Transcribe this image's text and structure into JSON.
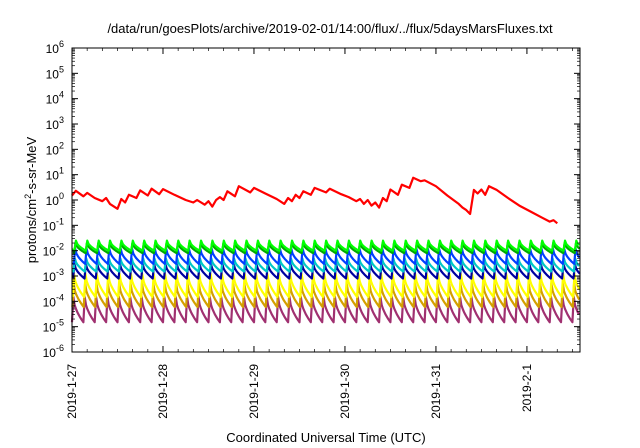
{
  "chart_data": {
    "type": "line",
    "title": "/data/run/goesPlots/archive/2019-02-01/14:00/flux/../flux/5daysMarsFluxes.txt",
    "xlabel": "Coordinated Universal Time (UTC)",
    "ylabel": "protons/cm²-s-sr-MeV",
    "y_scale": "log",
    "ylim": [
      1e-06,
      1000000.0
    ],
    "xlim_days": [
      "2019-01-27 00:00",
      "2019-02-01 14:00"
    ],
    "x_tick_labels": [
      "2019-1-27",
      "2019-1-28",
      "2019-1-29",
      "2019-1-30",
      "2019-1-31",
      "2019-2-1"
    ],
    "y_tick_labels": [
      {
        "base": "10",
        "exp": "-6"
      },
      {
        "base": "10",
        "exp": "-5"
      },
      {
        "base": "10",
        "exp": "-4"
      },
      {
        "base": "10",
        "exp": "-3"
      },
      {
        "base": "10",
        "exp": "-2"
      },
      {
        "base": "10",
        "exp": "-1"
      },
      {
        "base": "10",
        "exp": "0"
      },
      {
        "base": "10",
        "exp": "1"
      },
      {
        "base": "10",
        "exp": "2"
      },
      {
        "base": "10",
        "exp": "3"
      },
      {
        "base": "10",
        "exp": "4"
      },
      {
        "base": "10",
        "exp": "5"
      },
      {
        "base": "10",
        "exp": "6"
      }
    ],
    "grid": false,
    "legend": "none",
    "sawtooth_cycle_days": 0.125,
    "series": [
      {
        "color": "#ff0000",
        "points": [
          [
            "2019-01-27 00:00",
            1.5
          ],
          [
            "2019-01-27 01:00",
            2.3
          ],
          [
            "2019-01-27 03:00",
            1.4
          ],
          [
            "2019-01-27 04:00",
            1.9
          ],
          [
            "2019-01-27 06:00",
            1.2
          ],
          [
            "2019-01-27 08:00",
            0.9
          ],
          [
            "2019-01-27 09:00",
            1.2
          ],
          [
            "2019-01-27 10:00",
            0.7
          ],
          [
            "2019-01-27 12:00",
            0.45
          ],
          [
            "2019-01-27 13:00",
            1.1
          ],
          [
            "2019-01-27 14:00",
            0.8
          ],
          [
            "2019-01-27 15:00",
            1.6
          ],
          [
            "2019-01-27 17:00",
            1.2
          ],
          [
            "2019-01-27 18:00",
            2.4
          ],
          [
            "2019-01-27 20:00",
            1.5
          ],
          [
            "2019-01-27 21:00",
            2.8
          ],
          [
            "2019-01-27 23:00",
            1.7
          ],
          [
            "2019-01-28 00:00",
            2.7
          ],
          [
            "2019-01-28 03:00",
            1.6
          ],
          [
            "2019-01-28 06:00",
            1.0
          ],
          [
            "2019-01-28 08:00",
            0.8
          ],
          [
            "2019-01-28 09:00",
            1.0
          ],
          [
            "2019-01-28 11:00",
            0.65
          ],
          [
            "2019-01-28 12:00",
            0.9
          ],
          [
            "2019-01-28 13:00",
            0.55
          ],
          [
            "2019-01-28 14:00",
            1.0
          ],
          [
            "2019-01-28 15:00",
            1.3
          ],
          [
            "2019-01-28 16:00",
            1.0
          ],
          [
            "2019-01-28 17:00",
            2.2
          ],
          [
            "2019-01-28 19:00",
            1.4
          ],
          [
            "2019-01-28 20:00",
            3.5
          ],
          [
            "2019-01-28 23:00",
            2.0
          ],
          [
            "2019-01-29 00:00",
            3.0
          ],
          [
            "2019-01-29 03:00",
            1.8
          ],
          [
            "2019-01-29 06:00",
            1.1
          ],
          [
            "2019-01-29 08:00",
            0.7
          ],
          [
            "2019-01-29 09:00",
            1.2
          ],
          [
            "2019-01-29 10:00",
            0.9
          ],
          [
            "2019-01-29 11:00",
            1.6
          ],
          [
            "2019-01-29 12:00",
            1.2
          ],
          [
            "2019-01-29 13:00",
            2.2
          ],
          [
            "2019-01-29 15:00",
            1.6
          ],
          [
            "2019-01-29 16:00",
            3.0
          ],
          [
            "2019-01-29 19:00",
            2.0
          ],
          [
            "2019-01-29 20:00",
            2.8
          ],
          [
            "2019-01-29 23:00",
            1.7
          ],
          [
            "2019-01-30 01:00",
            1.3
          ],
          [
            "2019-01-30 03:00",
            0.9
          ],
          [
            "2019-01-30 04:00",
            1.1
          ],
          [
            "2019-01-30 05:00",
            0.7
          ],
          [
            "2019-01-30 06:00",
            1.0
          ],
          [
            "2019-01-30 07:00",
            0.6
          ],
          [
            "2019-01-30 08:00",
            0.8
          ],
          [
            "2019-01-30 09:00",
            0.5
          ],
          [
            "2019-01-30 10:00",
            1.2
          ],
          [
            "2019-01-30 11:00",
            0.9
          ],
          [
            "2019-01-30 12:00",
            2.6
          ],
          [
            "2019-01-30 14:00",
            1.6
          ],
          [
            "2019-01-30 15:00",
            4.0
          ],
          [
            "2019-01-30 17:00",
            3.0
          ],
          [
            "2019-01-30 18:00",
            7.5
          ],
          [
            "2019-01-30 20:00",
            5.5
          ],
          [
            "2019-01-30 21:00",
            6.0
          ],
          [
            "2019-01-31 00:00",
            3.5
          ],
          [
            "2019-01-31 03:00",
            1.5
          ],
          [
            "2019-01-31 06:00",
            0.7
          ],
          [
            "2019-01-31 07:00",
            0.5
          ],
          [
            "2019-01-31 08:00",
            0.4
          ],
          [
            "2019-01-31 09:00",
            0.28
          ],
          [
            "2019-01-31 10:00",
            2.5
          ],
          [
            "2019-01-31 11:00",
            1.8
          ],
          [
            "2019-01-31 12:00",
            2.6
          ],
          [
            "2019-01-31 13:00",
            1.6
          ],
          [
            "2019-01-31 14:00",
            3.5
          ],
          [
            "2019-01-31 16:00",
            2.5
          ],
          [
            "2019-01-31 19:00",
            1.2
          ],
          [
            "2019-01-31 22:00",
            0.6
          ],
          [
            "2019-02-01 01:00",
            0.35
          ],
          [
            "2019-02-01 04:00",
            0.2
          ],
          [
            "2019-02-01 06:00",
            0.14
          ],
          [
            "2019-02-01 07:00",
            0.16
          ],
          [
            "2019-02-01 08:00",
            0.12
          ]
        ]
      },
      {
        "color": "#00ff00",
        "peak": 0.025,
        "trough": 0.01
      },
      {
        "color": "#00aa00",
        "peak": 0.02,
        "trough": 0.008
      },
      {
        "color": "#0040ff",
        "peak": 0.012,
        "trough": 0.003
      },
      {
        "color": "#00c8c8",
        "peak": 0.005,
        "trough": 0.0015
      },
      {
        "color": "#0000a0",
        "peak": 0.003,
        "trough": 0.0008
      },
      {
        "color": "#ffff00",
        "peak": 0.0012,
        "trough": 0.00015
      },
      {
        "color": "#d4a000",
        "peak": 0.0005,
        "trough": 6e-05
      },
      {
        "color": "#a03070",
        "peak": 0.00015,
        "trough": 1.5e-05
      }
    ]
  }
}
